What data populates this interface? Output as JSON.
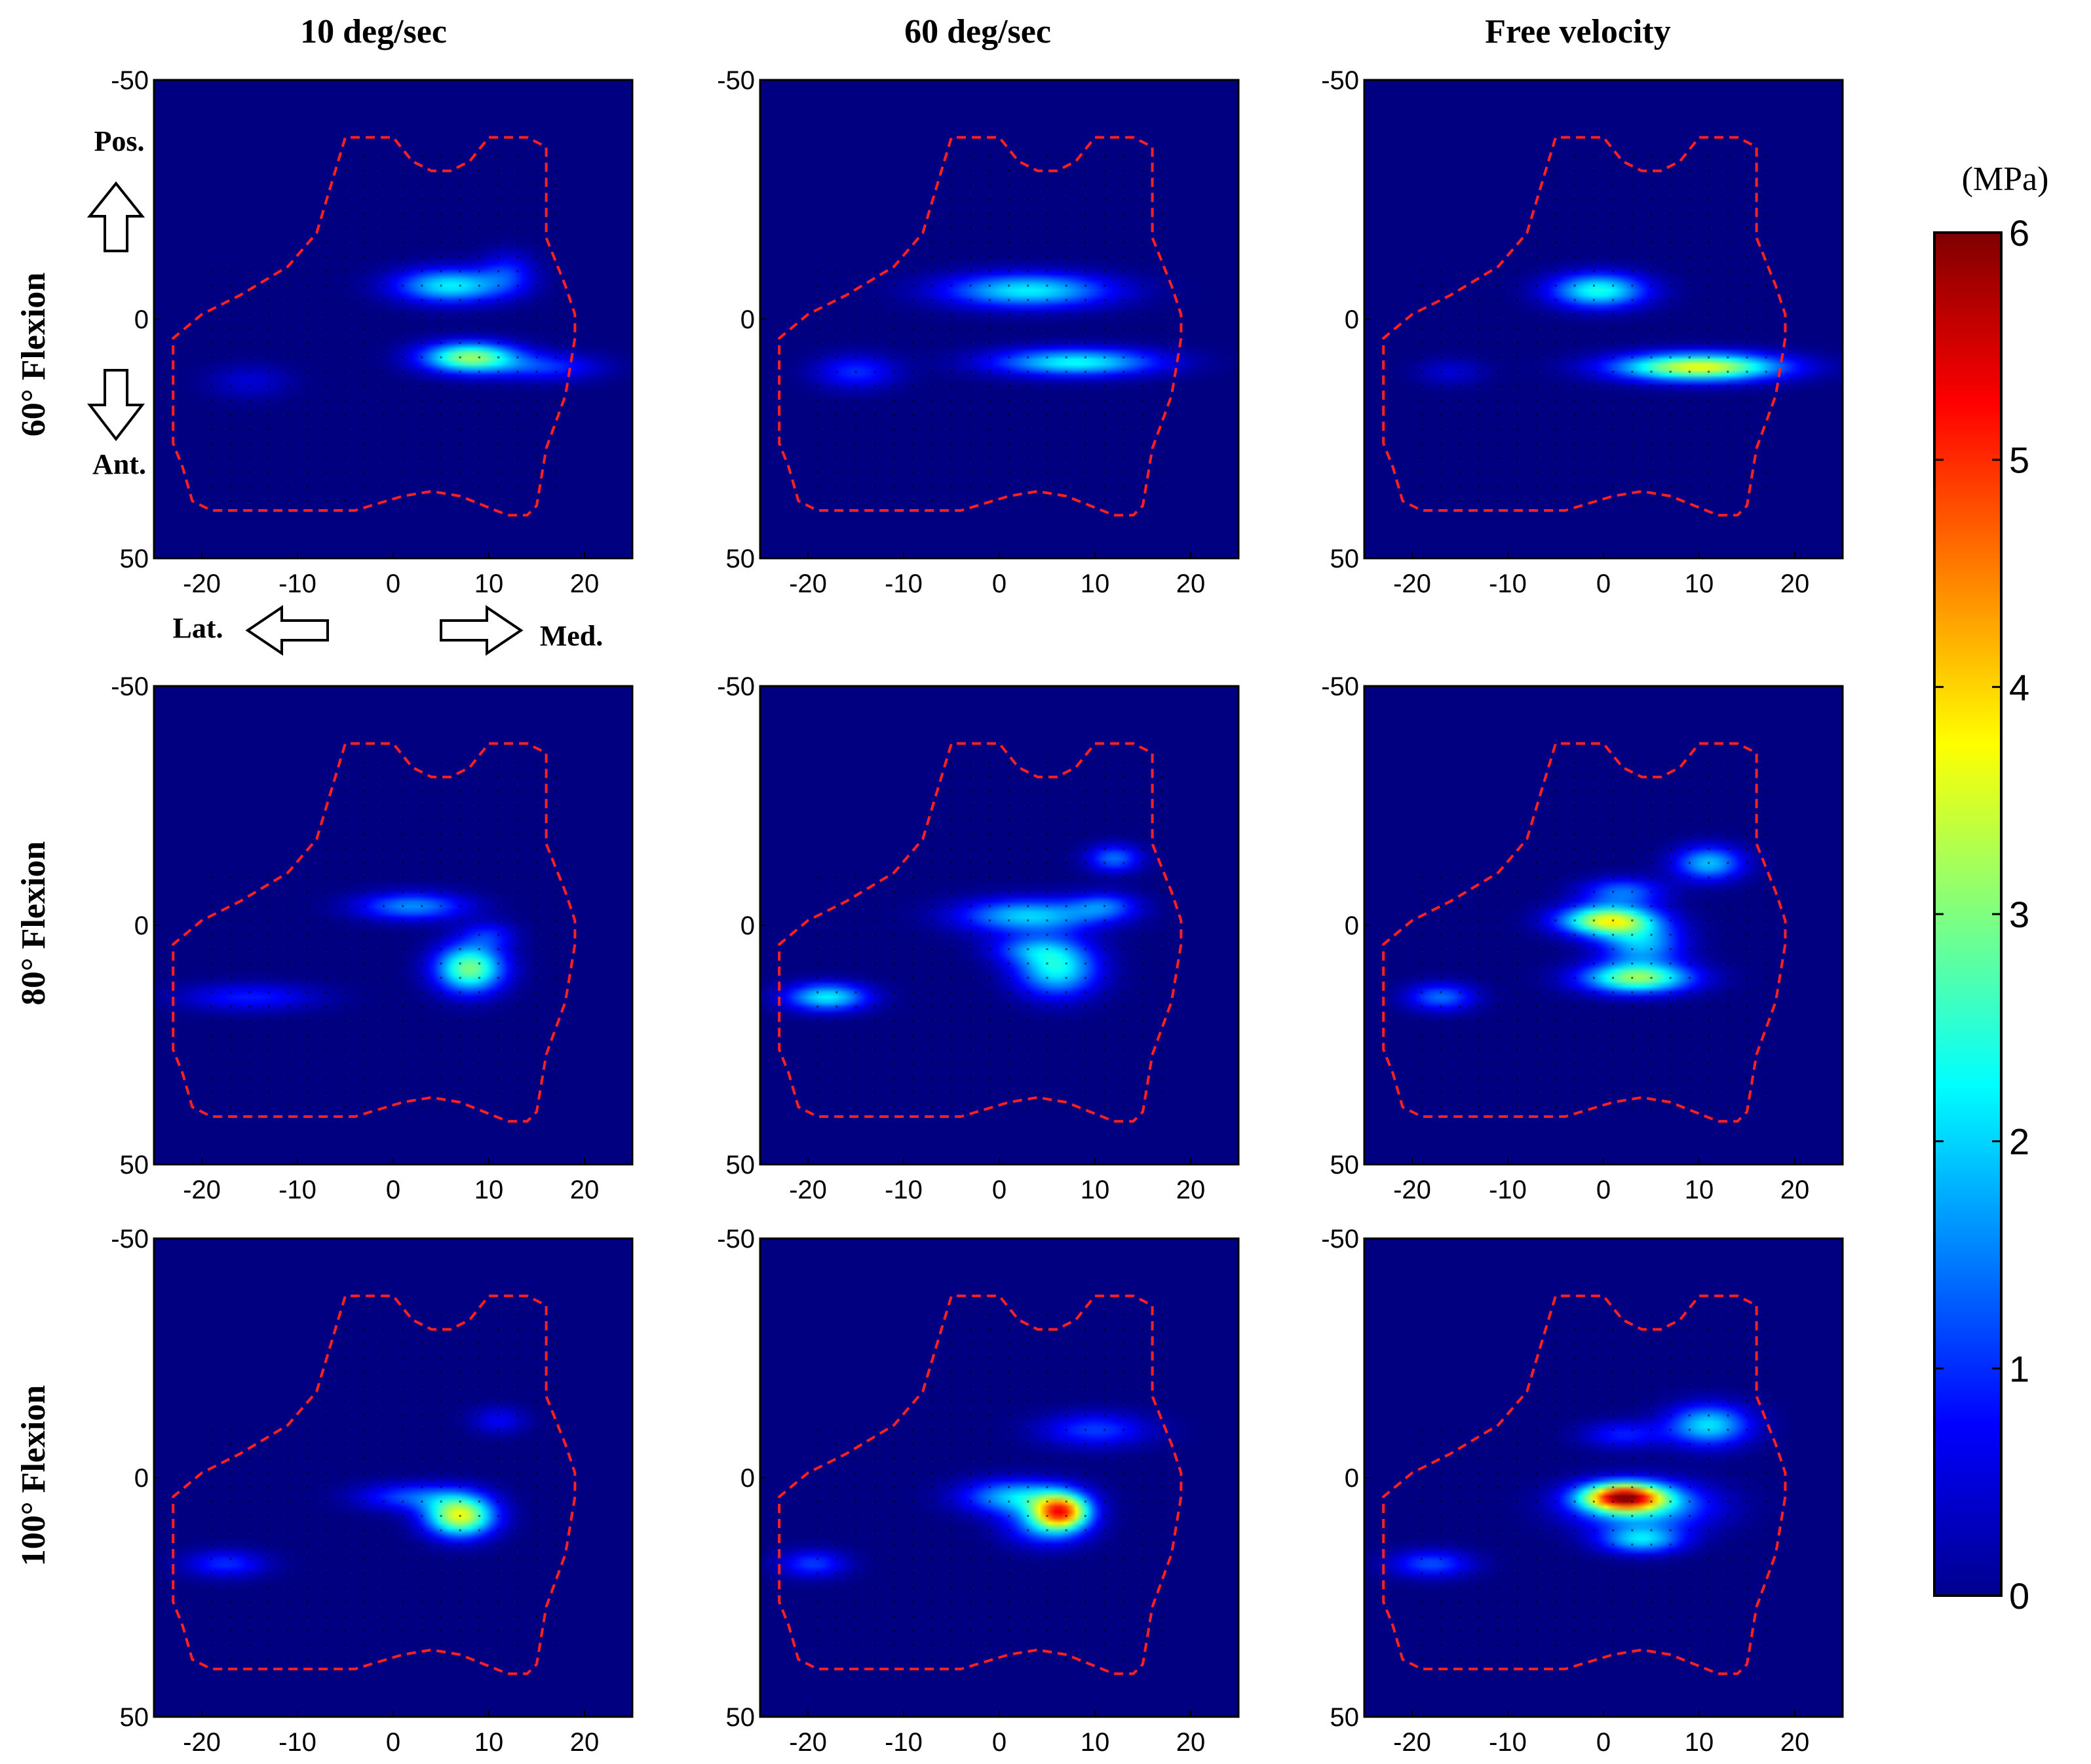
{
  "columns": [
    "10 deg/sec",
    "60 deg/sec",
    "Free velocity"
  ],
  "rows": [
    "60° Flexion",
    "80° Flexion",
    "100° Flexion"
  ],
  "orientation": {
    "posterior": "Pos.",
    "anterior": "Ant.",
    "lateral": "Lat.",
    "medial": "Med."
  },
  "colorbar": {
    "unit": "(MPa)",
    "min": 0,
    "max": 6,
    "ticks": [
      "0",
      "1",
      "2",
      "3",
      "4",
      "5",
      "6"
    ],
    "colormap": "jet"
  },
  "colors": {
    "background": "#00008f",
    "outline": "#ff2020",
    "mesh": "#000000"
  },
  "chart_data": {
    "type": "heatmap",
    "layout": "3x3 grid of pressure maps",
    "xlim": [
      -25,
      25
    ],
    "ylim": [
      50,
      -50
    ],
    "xticks": [
      "-20",
      "-10",
      "0",
      "10",
      "20"
    ],
    "yticks": [
      "-50",
      "0",
      "50"
    ],
    "value_unit": "MPa",
    "grid": false,
    "panels": [
      {
        "row": "60° Flexion",
        "column": "10 deg/sec",
        "peaks": [
          {
            "x": 6,
            "y": -7,
            "sx": 4,
            "sy": 2.5,
            "v": 2.2
          },
          {
            "x": 8,
            "y": 8,
            "sx": 3.5,
            "sy": 2.2,
            "v": 3.1
          },
          {
            "x": 16,
            "y": 10,
            "sx": 4,
            "sy": 2,
            "v": 1.0
          },
          {
            "x": 12,
            "y": -10,
            "sx": 2,
            "sy": 3,
            "v": 0.8
          },
          {
            "x": -15,
            "y": 13,
            "sx": 3,
            "sy": 2.5,
            "v": 0.5
          }
        ]
      },
      {
        "row": "60° Flexion",
        "column": "60 deg/sec",
        "peaks": [
          {
            "x": 3,
            "y": -6,
            "sx": 6,
            "sy": 2.5,
            "v": 2.2
          },
          {
            "x": 8,
            "y": 9,
            "sx": 6,
            "sy": 2,
            "v": 2.3
          },
          {
            "x": -15,
            "y": 11,
            "sx": 3,
            "sy": 2.5,
            "v": 1.0
          }
        ]
      },
      {
        "row": "60° Flexion",
        "column": "Free velocity",
        "peaks": [
          {
            "x": -0.5,
            "y": -6,
            "sx": 3.5,
            "sy": 2.5,
            "v": 2.4
          },
          {
            "x": 10,
            "y": 10,
            "sx": 6,
            "sy": 2,
            "v": 3.7
          },
          {
            "x": -16,
            "y": 11,
            "sx": 2.5,
            "sy": 2,
            "v": 0.5
          }
        ]
      },
      {
        "row": "80° Flexion",
        "column": "10 deg/sec",
        "peaks": [
          {
            "x": 2,
            "y": -4,
            "sx": 4,
            "sy": 2,
            "v": 1.6
          },
          {
            "x": 8,
            "y": 9,
            "sx": 2.5,
            "sy": 3.5,
            "v": 3.0
          },
          {
            "x": -15,
            "y": 15,
            "sx": 5,
            "sy": 2,
            "v": 0.9
          },
          {
            "x": 10,
            "y": 2,
            "sx": 2,
            "sy": 2,
            "v": 0.8
          }
        ]
      },
      {
        "row": "80° Flexion",
        "column": "60 deg/sec",
        "peaks": [
          {
            "x": 3,
            "y": -2,
            "sx": 5,
            "sy": 2.5,
            "v": 2.0
          },
          {
            "x": 6,
            "y": 9,
            "sx": 3,
            "sy": 4,
            "v": 2.3
          },
          {
            "x": 12,
            "y": -14,
            "sx": 2,
            "sy": 2,
            "v": 1.4
          },
          {
            "x": 11,
            "y": -4,
            "sx": 2.5,
            "sy": 2,
            "v": 1.2
          },
          {
            "x": 3,
            "y": 5,
            "sx": 3,
            "sy": 2,
            "v": 1.0
          },
          {
            "x": -18,
            "y": 15,
            "sx": 3,
            "sy": 2,
            "v": 2.2
          }
        ]
      },
      {
        "row": "80° Flexion",
        "column": "Free velocity",
        "peaks": [
          {
            "x": 0.5,
            "y": -1,
            "sx": 3.5,
            "sy": 2.2,
            "v": 3.6
          },
          {
            "x": 3.5,
            "y": 11,
            "sx": 4,
            "sy": 2.2,
            "v": 3.1
          },
          {
            "x": 4,
            "y": 4,
            "sx": 3,
            "sy": 3,
            "v": 1.8
          },
          {
            "x": 2,
            "y": -7,
            "sx": 3,
            "sy": 2,
            "v": 1.4
          },
          {
            "x": 11,
            "y": -13,
            "sx": 2.5,
            "sy": 2.5,
            "v": 1.9
          },
          {
            "x": -17,
            "y": 15,
            "sx": 2.5,
            "sy": 2,
            "v": 1.4
          }
        ]
      },
      {
        "row": "100° Flexion",
        "column": "10 deg/sec",
        "peaks": [
          {
            "x": 7,
            "y": 8,
            "sx": 2.5,
            "sy": 3,
            "v": 3.6
          },
          {
            "x": 2,
            "y": 4,
            "sx": 4,
            "sy": 2,
            "v": 1.2
          },
          {
            "x": -17.5,
            "y": 18,
            "sx": 3,
            "sy": 2,
            "v": 1.0
          },
          {
            "x": 11,
            "y": -12,
            "sx": 2,
            "sy": 2,
            "v": 0.7
          }
        ]
      },
      {
        "row": "100° Flexion",
        "column": "60 deg/sec",
        "peaks": [
          {
            "x": 6.5,
            "y": 7,
            "sx": 2,
            "sy": 2.5,
            "v": 4.0
          },
          {
            "x": 2,
            "y": 4,
            "sx": 4,
            "sy": 2.5,
            "v": 2.0
          },
          {
            "x": 5,
            "y": 10,
            "sx": 3,
            "sy": 3,
            "v": 1.5
          },
          {
            "x": 10,
            "y": -10,
            "sx": 4,
            "sy": 2.5,
            "v": 1.1
          },
          {
            "x": -19.5,
            "y": 18,
            "sx": 2.5,
            "sy": 2,
            "v": 1.1
          }
        ]
      },
      {
        "row": "100° Flexion",
        "column": "Free velocity",
        "peaks": [
          {
            "x": 2,
            "y": 4,
            "sx": 3,
            "sy": 2,
            "v": 4.6
          },
          {
            "x": 4,
            "y": 6,
            "sx": 5,
            "sy": 3.5,
            "v": 2.0
          },
          {
            "x": 4,
            "y": 13,
            "sx": 3,
            "sy": 2,
            "v": 1.9
          },
          {
            "x": 11,
            "y": -11,
            "sx": 3,
            "sy": 3,
            "v": 2.1
          },
          {
            "x": 2,
            "y": -9,
            "sx": 3,
            "sy": 2,
            "v": 0.9
          },
          {
            "x": -18,
            "y": 18,
            "sx": 3,
            "sy": 2,
            "v": 1.2
          }
        ]
      }
    ]
  }
}
